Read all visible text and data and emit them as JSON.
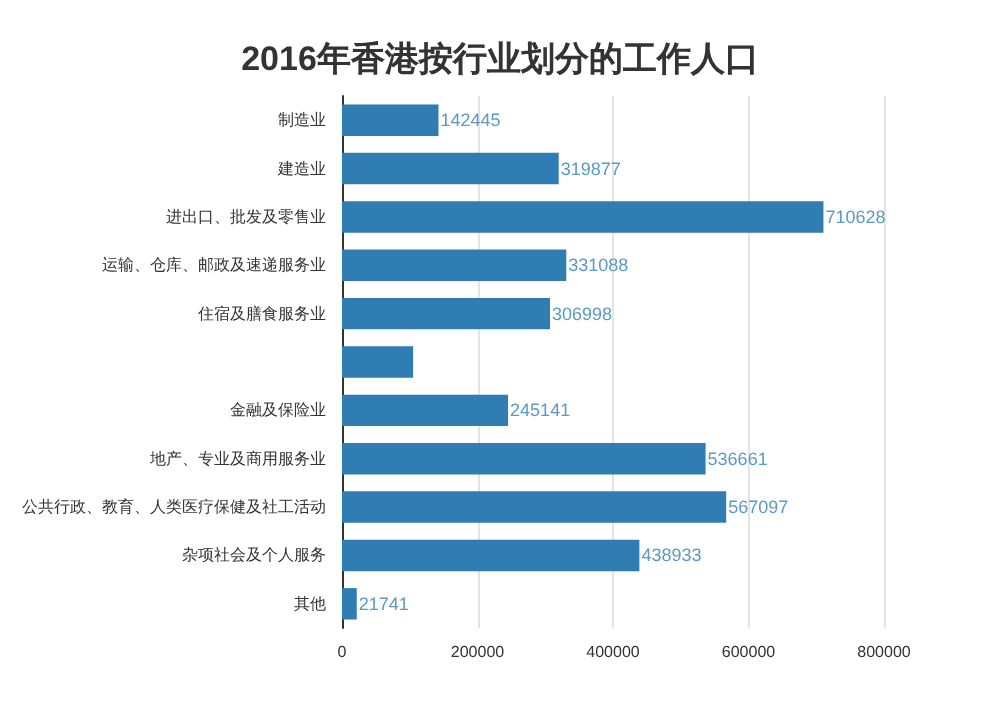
{
  "chart_data": {
    "type": "bar",
    "orientation": "horizontal",
    "title": "2016年香港按行业划分的工作人口",
    "categories": [
      "制造业",
      "建造业",
      "进出口、批发及零售业",
      "运输、仓库、邮政及速递服务业",
      "住宿及膳食服务业",
      null,
      "金融及保险业",
      "地产、专业及商用服务业",
      "公共行政、教育、人类医疗保健及社工活动",
      "杂项社会及个人服务",
      "其他"
    ],
    "values": [
      142445,
      319877,
      710628,
      331088,
      306998,
      105000,
      245141,
      536661,
      567097,
      438933,
      21741
    ],
    "value_labels": [
      "142445",
      "319877",
      "710628",
      "331088",
      "306998",
      null,
      "245141",
      "536661",
      "567097",
      "438933",
      "21741"
    ],
    "color": "#2f7db3",
    "xlim": [
      0,
      800000
    ],
    "xticks": [
      0,
      200000,
      400000,
      600000,
      800000
    ],
    "grid": "x"
  }
}
